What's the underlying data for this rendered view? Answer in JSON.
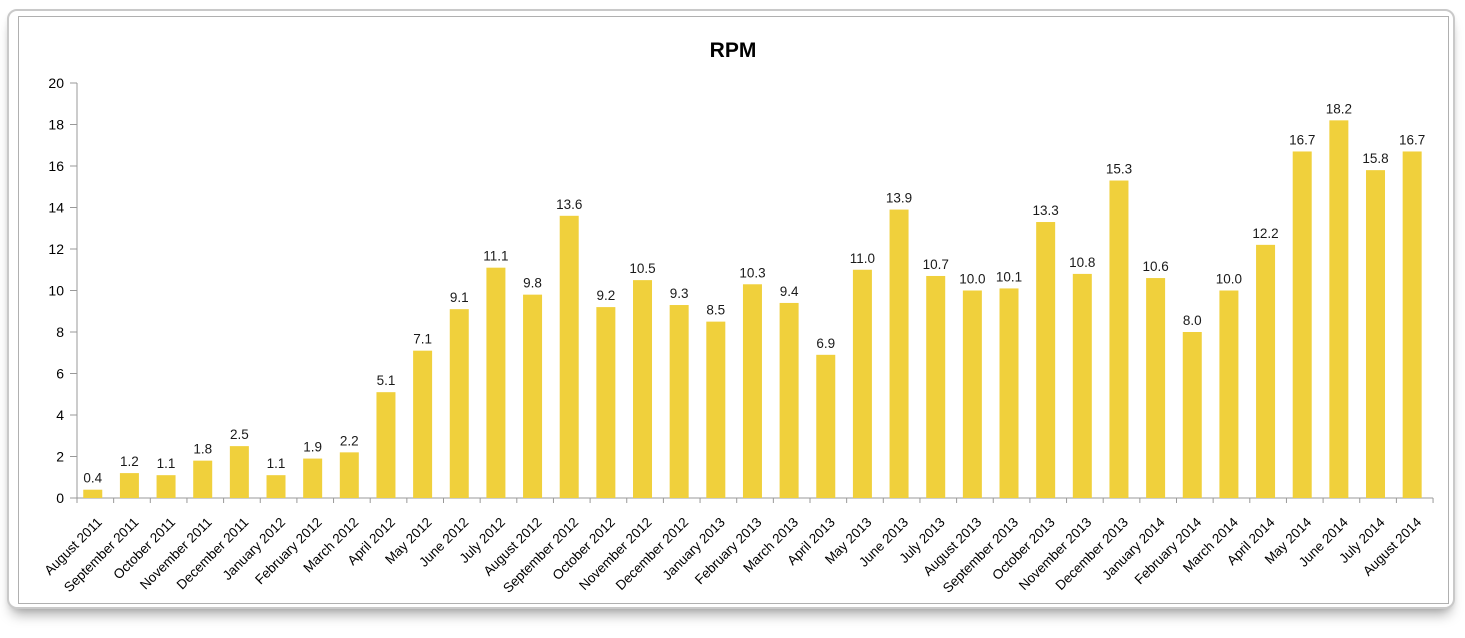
{
  "window": {
    "background": "#FFFFFF",
    "frame_border_color": "#C9C9C9",
    "chart_box_border_color": "#B0B0B0"
  },
  "chart_data": {
    "type": "bar",
    "title": "RPM",
    "categories": [
      "August 2011",
      "September 2011",
      "October 2011",
      "November 2011",
      "December 2011",
      "January 2012",
      "February 2012",
      "March 2012",
      "April 2012",
      "May 2012",
      "June 2012",
      "July 2012",
      "August 2012",
      "September 2012",
      "October 2012",
      "November 2012",
      "December 2012",
      "January 2013",
      "February 2013",
      "March 2013",
      "April 2013",
      "May 2013",
      "June 2013",
      "July 2013",
      "August 2013",
      "September 2013",
      "October 2013",
      "November 2013",
      "December 2013",
      "January 2014",
      "February 2014",
      "March 2014",
      "April 2014",
      "May 2014",
      "June 2014",
      "July 2014",
      "August 2014"
    ],
    "values": [
      0.4,
      1.2,
      1.1,
      1.8,
      2.5,
      1.1,
      1.9,
      2.2,
      5.1,
      7.1,
      9.1,
      11.1,
      9.8,
      13.6,
      9.2,
      10.5,
      9.3,
      8.5,
      10.3,
      9.4,
      6.9,
      11.0,
      13.9,
      10.7,
      10.0,
      10.1,
      13.3,
      10.8,
      15.3,
      10.6,
      8.0,
      10.0,
      12.2,
      16.7,
      18.2,
      15.8,
      16.7
    ],
    "value_label_format": "one-decimal",
    "xlabel": "",
    "ylabel": "",
    "ylim": [
      0,
      20
    ],
    "ytick_step": 2,
    "yticks": [
      0,
      2,
      4,
      6,
      8,
      10,
      12,
      14,
      16,
      18,
      20
    ],
    "grid": false,
    "legend": "none",
    "x_label_rotation_deg": -45,
    "bar_color": "#F0D03C",
    "axis_color": "#999999",
    "value_label_color": "#1A1A1A",
    "tick_label_color": "#000000",
    "title_color": "#000000"
  }
}
